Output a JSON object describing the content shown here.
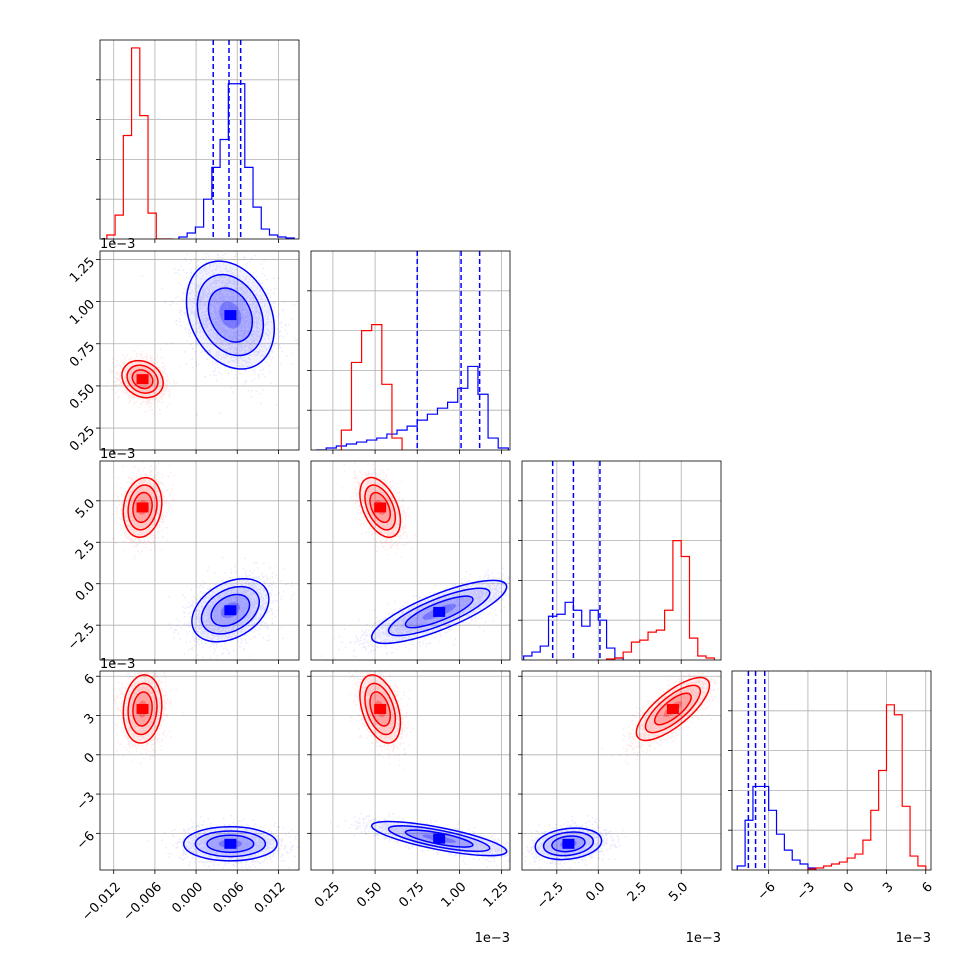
{
  "chart_data": {
    "type": "corner",
    "grid": true,
    "colors": {
      "A": "#ff0000",
      "B": "#0000ff"
    },
    "parameters": [
      {
        "index": 0,
        "range": [
          -0.014,
          0.015
        ],
        "ticks": [
          -0.012,
          -0.006,
          0.0,
          0.006,
          0.012
        ],
        "tick_labels": [
          "−0.012",
          "−0.006",
          "0.000",
          "0.006",
          "0.012"
        ],
        "multiplier": ""
      },
      {
        "index": 1,
        "range": [
          0.12,
          1.3
        ],
        "ticks": [
          0.25,
          0.5,
          0.75,
          1.0,
          1.25
        ],
        "tick_labels": [
          "0.25",
          "0.50",
          "0.75",
          "1.00",
          "1.25"
        ],
        "multiplier": "1e−3"
      },
      {
        "index": 2,
        "range": [
          -4.6,
          7.4
        ],
        "ticks": [
          -2.5,
          0.0,
          2.5,
          5.0
        ],
        "tick_labels": [
          "−2.5",
          "0.0",
          "2.5",
          "5.0"
        ],
        "multiplier": "1e−3"
      },
      {
        "index": 3,
        "range": [
          -8.8,
          6.4
        ],
        "ticks": [
          -6,
          -3,
          0,
          3,
          6
        ],
        "tick_labels": [
          "−6",
          "−3",
          "0",
          "3",
          "6"
        ],
        "multiplier": "1e−3"
      }
    ],
    "histograms": [
      {
        "param": 0,
        "quantiles_B": [
          0.0025,
          0.0048,
          0.0065
        ],
        "A": {
          "bins": [
            -0.013,
            -0.0118,
            -0.0106,
            -0.0094,
            -0.0082,
            -0.007,
            -0.0058,
            -0.0046,
            -0.0034
          ],
          "values": [
            0.02,
            0.12,
            0.52,
            0.96,
            0.62,
            0.13,
            0.0,
            0.0
          ]
        },
        "B": {
          "bins": [
            -0.0025,
            -0.0013,
            -0.0001,
            0.0011,
            0.0023,
            0.0035,
            0.0047,
            0.0059,
            0.0071,
            0.0083,
            0.0095,
            0.0107,
            0.0119,
            0.0131,
            0.0143
          ],
          "values": [
            0.01,
            0.03,
            0.06,
            0.2,
            0.36,
            0.5,
            0.78,
            0.78,
            0.36,
            0.16,
            0.05,
            0.02,
            0.01,
            0.005
          ]
        }
      },
      {
        "param": 1,
        "quantiles_B": [
          0.75,
          1.01,
          1.12
        ],
        "A": {
          "bins": [
            0.3,
            0.36,
            0.42,
            0.48,
            0.54,
            0.6,
            0.66
          ],
          "values": [
            0.1,
            0.44,
            0.6,
            0.63,
            0.33,
            0.06
          ]
        },
        "B": {
          "bins": [
            0.15,
            0.21,
            0.27,
            0.33,
            0.39,
            0.45,
            0.51,
            0.57,
            0.63,
            0.69,
            0.75,
            0.81,
            0.87,
            0.93,
            0.99,
            1.05,
            1.11,
            1.17,
            1.23,
            1.29
          ],
          "values": [
            0.0,
            0.01,
            0.02,
            0.03,
            0.04,
            0.05,
            0.06,
            0.08,
            0.1,
            0.12,
            0.15,
            0.18,
            0.21,
            0.24,
            0.31,
            0.42,
            0.28,
            0.06,
            0.01
          ]
        }
      },
      {
        "param": 2,
        "quantiles_B": [
          -2.75,
          -1.5,
          0.1
        ],
        "A": {
          "bins": [
            0.5,
            1.0,
            1.5,
            2.0,
            2.5,
            3.0,
            3.5,
            4.0,
            4.5,
            5.0,
            5.5,
            6.0,
            6.5,
            7.0
          ],
          "values": [
            0.005,
            0.01,
            0.04,
            0.09,
            0.1,
            0.14,
            0.15,
            0.25,
            0.6,
            0.52,
            0.11,
            0.02,
            0.01
          ]
        },
        "B": {
          "bins": [
            -4.5,
            -4.0,
            -3.5,
            -3.0,
            -2.5,
            -2.0,
            -1.5,
            -1.0,
            -0.5,
            0.0,
            0.5,
            1.0,
            1.5
          ],
          "values": [
            0.02,
            0.04,
            0.07,
            0.22,
            0.23,
            0.29,
            0.25,
            0.17,
            0.25,
            0.2,
            0.06,
            0.01
          ]
        }
      },
      {
        "param": 3,
        "quantiles_B": [
          -7.55,
          -7.0,
          -6.3
        ],
        "A": {
          "bins": [
            -3.0,
            -2.4,
            -1.8,
            -1.2,
            -0.6,
            0.0,
            0.6,
            1.2,
            1.8,
            2.4,
            3.0,
            3.6,
            4.2,
            4.8,
            5.4,
            6.0
          ],
          "values": [
            0.005,
            0.01,
            0.02,
            0.03,
            0.04,
            0.06,
            0.08,
            0.15,
            0.3,
            0.5,
            0.83,
            0.78,
            0.32,
            0.07,
            0.02
          ]
        },
        "B": {
          "bins": [
            -8.4,
            -7.8,
            -7.2,
            -6.6,
            -6.0,
            -5.4,
            -4.8,
            -4.2,
            -3.6,
            -3.0,
            -2.4
          ],
          "values": [
            0.02,
            0.25,
            0.42,
            0.42,
            0.3,
            0.18,
            0.1,
            0.05,
            0.03,
            0.01
          ]
        }
      }
    ],
    "scatter_panels": [
      {
        "x": 0,
        "y": 1,
        "A": {
          "center": [
            -0.0078,
            0.54
          ],
          "sd": [
            0.0015,
            0.055
          ],
          "rho": -0.2,
          "n": 2200
        },
        "B": {
          "center": [
            0.005,
            0.92
          ],
          "sd": [
            0.0032,
            0.16
          ],
          "rho": -0.25,
          "n": 2200
        }
      },
      {
        "x": 0,
        "y": 2,
        "A": {
          "center": [
            -0.0078,
            4.6
          ],
          "sd": [
            0.0014,
            0.9
          ],
          "rho": 0.15,
          "n": 2200
        },
        "B": {
          "center": [
            0.005,
            -1.6
          ],
          "sd": [
            0.0028,
            0.95
          ],
          "rho": 0.35,
          "n": 2200
        }
      },
      {
        "x": 1,
        "y": 2,
        "A": {
          "center": [
            0.53,
            4.6
          ],
          "sd": [
            0.06,
            0.9
          ],
          "rho": -0.45,
          "n": 2200
        },
        "B": {
          "center": [
            0.88,
            -1.7
          ],
          "sd": [
            0.2,
            0.95
          ],
          "rho": 0.8,
          "n": 2200
        }
      },
      {
        "x": 0,
        "y": 3,
        "A": {
          "center": [
            -0.0078,
            3.5
          ],
          "sd": [
            0.0014,
            1.3
          ],
          "rho": 0.1,
          "n": 2200
        },
        "B": {
          "center": [
            0.005,
            -6.8
          ],
          "sd": [
            0.0034,
            0.65
          ],
          "rho": 0.0,
          "n": 2200
        }
      },
      {
        "x": 1,
        "y": 3,
        "A": {
          "center": [
            0.53,
            3.5
          ],
          "sd": [
            0.06,
            1.3
          ],
          "rho": -0.4,
          "n": 2200
        },
        "B": {
          "center": [
            0.88,
            -6.4
          ],
          "sd": [
            0.2,
            0.65
          ],
          "rho": -0.75,
          "n": 2200
        }
      },
      {
        "x": 2,
        "y": 3,
        "A": {
          "center": [
            4.5,
            3.5
          ],
          "sd": [
            1.1,
            1.2
          ],
          "rho": 0.75,
          "n": 2200
        },
        "B": {
          "center": [
            -1.8,
            -6.8
          ],
          "sd": [
            1.0,
            0.6
          ],
          "rho": 0.2,
          "n": 2200
        }
      }
    ]
  }
}
